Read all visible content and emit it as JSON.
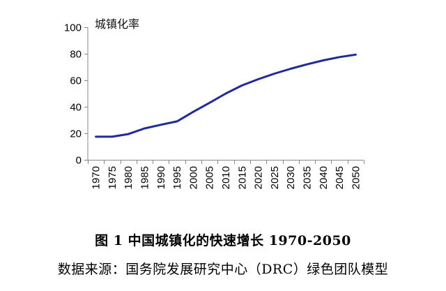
{
  "caption": {
    "title": "图 1   中国城镇化的快速增长 1970-2050",
    "source": "数据来源：国务院发展研究中心（DRC）绿色团队模型"
  },
  "chart_data": {
    "type": "line",
    "title": "",
    "ylabel": "城镇化率",
    "xlabel": "",
    "categories": [
      "1970",
      "1975",
      "1980",
      "1985",
      "1990",
      "1995",
      "2000",
      "2005",
      "2010",
      "2015",
      "2020",
      "2025",
      "2030",
      "2035",
      "2040",
      "2045",
      "2050"
    ],
    "series": [
      {
        "name": "城镇化率",
        "values": [
          17.4,
          17.4,
          19.4,
          23.7,
          26.4,
          29.0,
          36.2,
          43.0,
          50.0,
          56.1,
          60.8,
          65.0,
          68.7,
          72.0,
          75.0,
          77.5,
          79.3
        ]
      }
    ],
    "ylim": [
      0,
      100
    ],
    "yticks": [
      0,
      20,
      40,
      60,
      80,
      100
    ],
    "grid": false,
    "legend": "none",
    "line_color": "#1f2a9c",
    "axis_color": "#888888"
  }
}
